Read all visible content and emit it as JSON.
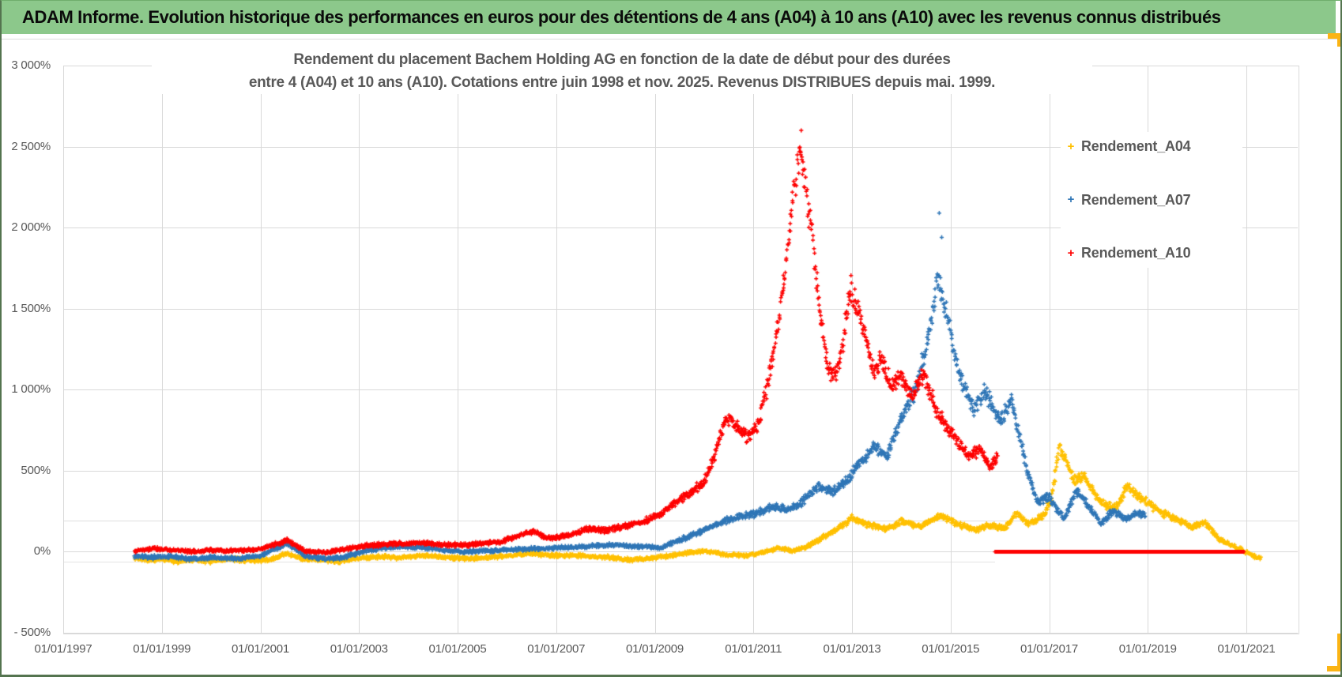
{
  "window": {
    "header_title": "ADAM Informe. Evolution historique des performances en euros pour des détentions de 4 ans (A04) à 10 ans (A10) avec les revenus connus distribués"
  },
  "colors": {
    "header_bg": "#8cc88b",
    "grid": "#d9d9d9",
    "axis_text": "#595959",
    "selection_orange": "#fbb414",
    "series_a04": "#ffc000",
    "series_a07": "#2e75b6",
    "series_a10": "#fe0000"
  },
  "chart_data": {
    "type": "scatter",
    "title_line1": "Rendement du placement Bachem Holding AG en fonction de la date de début pour des durées",
    "title_line2": "entre 4 (A04) et 10 ans (A10). Cotations entre juin 1998 et nov. 2025. Revenus DISTRIBUES depuis mai. 1999.",
    "x_axis": {
      "start_year": 1997,
      "end_year": 2021,
      "tick_step_years": 2,
      "tick_labels": [
        "01/01/1997",
        "01/01/1999",
        "01/01/2001",
        "01/01/2003",
        "01/01/2005",
        "01/01/2007",
        "01/01/2009",
        "01/01/2011",
        "01/01/2013",
        "01/01/2015",
        "01/01/2017",
        "01/01/2019",
        "01/01/2021"
      ]
    },
    "y_axis": {
      "min": -500,
      "max": 3000,
      "step": 500,
      "unit": "%",
      "tick_labels": [
        "3 000%",
        "2 500%",
        "2 000%",
        "1 500%",
        "1 000%",
        "500%",
        "0%",
        "- 500%"
      ]
    },
    "legend": {
      "position": "right",
      "items": [
        {
          "label": "Rendement_A04",
          "color": "#ffc000"
        },
        {
          "label": "Rendement_A07",
          "color": "#2e75b6"
        },
        {
          "label": "Rendement_A10",
          "color": "#fe0000"
        }
      ]
    },
    "marker": "plus",
    "series": [
      {
        "name": "Rendement_A04",
        "color": "#ffc000",
        "seed": 7,
        "anchors": [
          [
            1998.45,
            -35
          ],
          [
            1998.7,
            -55
          ],
          [
            1999,
            -45
          ],
          [
            1999.3,
            -60
          ],
          [
            1999.7,
            -50
          ],
          [
            2000,
            -60
          ],
          [
            2000.4,
            -45
          ],
          [
            2000.8,
            -55
          ],
          [
            2001.2,
            -50
          ],
          [
            2001.55,
            -10
          ],
          [
            2001.8,
            -40
          ],
          [
            2002.2,
            -50
          ],
          [
            2002.6,
            -60
          ],
          [
            2003,
            -40
          ],
          [
            2003.4,
            -30
          ],
          [
            2003.8,
            -35
          ],
          [
            2004.2,
            -25
          ],
          [
            2004.6,
            -30
          ],
          [
            2005,
            -40
          ],
          [
            2005.4,
            -40
          ],
          [
            2005.8,
            -30
          ],
          [
            2006.2,
            -20
          ],
          [
            2006.5,
            -10
          ],
          [
            2006.9,
            -25
          ],
          [
            2007.3,
            -20
          ],
          [
            2007.7,
            -30
          ],
          [
            2008.1,
            -35
          ],
          [
            2008.5,
            -50
          ],
          [
            2008.9,
            -40
          ],
          [
            2009.3,
            -25
          ],
          [
            2009.7,
            -5
          ],
          [
            2010,
            5
          ],
          [
            2010.4,
            -15
          ],
          [
            2010.8,
            -25
          ],
          [
            2011.2,
            -5
          ],
          [
            2011.5,
            25
          ],
          [
            2011.8,
            5
          ],
          [
            2012.1,
            35
          ],
          [
            2012.4,
            85
          ],
          [
            2012.7,
            140
          ],
          [
            2013,
            210
          ],
          [
            2013.3,
            170
          ],
          [
            2013.7,
            140
          ],
          [
            2014,
            185
          ],
          [
            2014.4,
            155
          ],
          [
            2014.8,
            225
          ],
          [
            2015.1,
            175
          ],
          [
            2015.5,
            135
          ],
          [
            2015.8,
            165
          ],
          [
            2016.1,
            145
          ],
          [
            2016.35,
            240
          ],
          [
            2016.6,
            170
          ],
          [
            2016.9,
            230
          ],
          [
            2017.05,
            330
          ],
          [
            2017.2,
            640
          ],
          [
            2017.35,
            560
          ],
          [
            2017.5,
            440
          ],
          [
            2017.7,
            470
          ],
          [
            2017.9,
            370
          ],
          [
            2018.1,
            290
          ],
          [
            2018.35,
            270
          ],
          [
            2018.6,
            410
          ],
          [
            2018.8,
            340
          ],
          [
            2019.05,
            290
          ],
          [
            2019.3,
            240
          ],
          [
            2019.6,
            195
          ],
          [
            2019.9,
            150
          ],
          [
            2020.15,
            185
          ],
          [
            2020.45,
            75
          ],
          [
            2020.75,
            35
          ],
          [
            2021,
            -5
          ],
          [
            2021.3,
            -45
          ]
        ],
        "outliers": []
      },
      {
        "name": "Rendement_A07",
        "color": "#2e75b6",
        "seed": 13,
        "anchors": [
          [
            1998.45,
            -25
          ],
          [
            1998.8,
            -35
          ],
          [
            1999.2,
            -30
          ],
          [
            1999.6,
            -45
          ],
          [
            2000,
            -35
          ],
          [
            2000.5,
            -45
          ],
          [
            2001,
            -25
          ],
          [
            2001.55,
            55
          ],
          [
            2001.9,
            -25
          ],
          [
            2002.3,
            -45
          ],
          [
            2002.7,
            -35
          ],
          [
            2003.1,
            5
          ],
          [
            2003.5,
            25
          ],
          [
            2003.9,
            30
          ],
          [
            2004.3,
            25
          ],
          [
            2004.7,
            10
          ],
          [
            2005.1,
            0
          ],
          [
            2005.5,
            5
          ],
          [
            2005.9,
            10
          ],
          [
            2006.3,
            15
          ],
          [
            2006.7,
            20
          ],
          [
            2007.1,
            25
          ],
          [
            2007.5,
            30
          ],
          [
            2007.9,
            40
          ],
          [
            2008.3,
            40
          ],
          [
            2008.7,
            30
          ],
          [
            2009.1,
            25
          ],
          [
            2009.5,
            70
          ],
          [
            2009.9,
            120
          ],
          [
            2010.2,
            160
          ],
          [
            2010.5,
            200
          ],
          [
            2010.8,
            220
          ],
          [
            2011.1,
            240
          ],
          [
            2011.4,
            280
          ],
          [
            2011.7,
            255
          ],
          [
            2012,
            310
          ],
          [
            2012.3,
            400
          ],
          [
            2012.6,
            370
          ],
          [
            2012.9,
            440
          ],
          [
            2013.2,
            560
          ],
          [
            2013.45,
            650
          ],
          [
            2013.7,
            590
          ],
          [
            2014,
            820
          ],
          [
            2014.3,
            1000
          ],
          [
            2014.55,
            1320
          ],
          [
            2014.75,
            1700
          ],
          [
            2014.95,
            1420
          ],
          [
            2015.15,
            1120
          ],
          [
            2015.45,
            880
          ],
          [
            2015.7,
            990
          ],
          [
            2016,
            810
          ],
          [
            2016.25,
            930
          ],
          [
            2016.5,
            570
          ],
          [
            2016.75,
            300
          ],
          [
            2017,
            340
          ],
          [
            2017.3,
            195
          ],
          [
            2017.55,
            380
          ],
          [
            2017.8,
            280
          ],
          [
            2018.05,
            170
          ],
          [
            2018.3,
            255
          ],
          [
            2018.55,
            200
          ],
          [
            2018.8,
            240
          ],
          [
            2018.95,
            225
          ]
        ],
        "outliers": [
          [
            2014.77,
            2090
          ],
          [
            2014.82,
            1940
          ]
        ]
      },
      {
        "name": "Rendement_A10",
        "color": "#fe0000",
        "seed": 99,
        "anchors": [
          [
            1998.45,
            5
          ],
          [
            1998.8,
            20
          ],
          [
            1999.2,
            10
          ],
          [
            1999.6,
            0
          ],
          [
            2000,
            10
          ],
          [
            2000.5,
            5
          ],
          [
            2001,
            15
          ],
          [
            2001.55,
            70
          ],
          [
            2001.9,
            5
          ],
          [
            2002.3,
            -5
          ],
          [
            2002.7,
            15
          ],
          [
            2003.1,
            35
          ],
          [
            2003.5,
            45
          ],
          [
            2003.9,
            50
          ],
          [
            2004.3,
            55
          ],
          [
            2004.7,
            45
          ],
          [
            2005.1,
            40
          ],
          [
            2005.5,
            50
          ],
          [
            2005.9,
            60
          ],
          [
            2006.3,
            110
          ],
          [
            2006.55,
            125
          ],
          [
            2006.8,
            85
          ],
          [
            2007.2,
            95
          ],
          [
            2007.6,
            140
          ],
          [
            2008,
            130
          ],
          [
            2008.4,
            160
          ],
          [
            2008.8,
            190
          ],
          [
            2009.1,
            230
          ],
          [
            2009.4,
            300
          ],
          [
            2009.7,
            360
          ],
          [
            2010,
            430
          ],
          [
            2010.2,
            580
          ],
          [
            2010.45,
            830
          ],
          [
            2010.65,
            760
          ],
          [
            2010.9,
            700
          ],
          [
            2011.1,
            790
          ],
          [
            2011.3,
            1050
          ],
          [
            2011.5,
            1380
          ],
          [
            2011.7,
            1900
          ],
          [
            2011.85,
            2280
          ],
          [
            2011.95,
            2480
          ],
          [
            2012.05,
            2300
          ],
          [
            2012.2,
            1950
          ],
          [
            2012.35,
            1480
          ],
          [
            2012.5,
            1150
          ],
          [
            2012.65,
            1080
          ],
          [
            2012.8,
            1250
          ],
          [
            2012.95,
            1600
          ],
          [
            2013.1,
            1520
          ],
          [
            2013.25,
            1350
          ],
          [
            2013.45,
            1100
          ],
          [
            2013.6,
            1210
          ],
          [
            2013.8,
            1020
          ],
          [
            2014,
            1080
          ],
          [
            2014.2,
            950
          ],
          [
            2014.45,
            1100
          ],
          [
            2014.7,
            880
          ],
          [
            2014.9,
            780
          ],
          [
            2015.1,
            700
          ],
          [
            2015.35,
            580
          ],
          [
            2015.6,
            640
          ],
          [
            2015.8,
            520
          ],
          [
            2015.95,
            580
          ]
        ],
        "outliers": [
          [
            2011.97,
            2600
          ],
          [
            2012.98,
            1705
          ]
        ],
        "flat_zero_segment": {
          "from": 2015.9,
          "to": 2020.96,
          "value": 0
        }
      }
    ]
  }
}
